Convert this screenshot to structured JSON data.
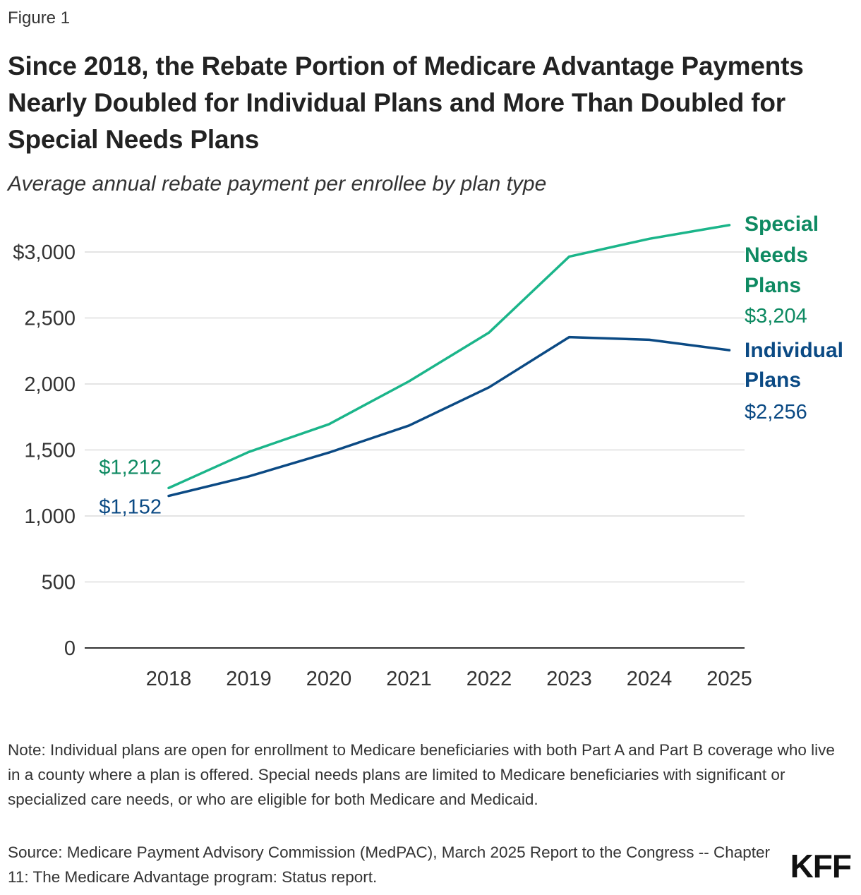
{
  "figure_label": "Figure 1",
  "title": "Since 2018, the Rebate Portion of Medicare Advantage Payments Nearly Doubled for Individual Plans and More Than Doubled for Special Needs Plans",
  "subtitle": "Average annual rebate payment per enrollee by plan type",
  "note": "Note: Individual plans are open for enrollment to Medicare beneficiaries with both Part A and Part B coverage who live in a county where a plan is offered. Special needs plans are limited to Medicare beneficiaries with significant or specialized care needs, or who are eligible for both Medicare and Medicaid.",
  "source": "Source: Medicare Payment Advisory Commission (MedPAC), March 2025 Report to the Congress -- Chapter 11: The Medicare Advantage program: Status report.",
  "logo": "KFF",
  "chart_data": {
    "type": "line",
    "x": [
      "2018",
      "2019",
      "2020",
      "2021",
      "2022",
      "2023",
      "2024",
      "2025"
    ],
    "ylim": [
      0,
      3000
    ],
    "yticks": [
      0,
      500,
      1000,
      1500,
      2000,
      2500,
      3000
    ],
    "ytick_labels": [
      "0",
      "500",
      "1,000",
      "1,500",
      "2,000",
      "2,500",
      "$3,000"
    ],
    "grid": true,
    "series": [
      {
        "name": "Special Needs Plans",
        "label_lines": [
          "Special",
          "Needs",
          "Plans"
        ],
        "color": "#1bb58a",
        "label_color": "#0e8a62",
        "values": [
          1212,
          1485,
          1695,
          2020,
          2390,
          2965,
          3100,
          3204
        ],
        "start_label": "$1,212",
        "end_label": "$3,204"
      },
      {
        "name": "Individual Plans",
        "label_lines": [
          "Individual",
          "Plans"
        ],
        "color": "#0b4a84",
        "label_color": "#0b4a84",
        "values": [
          1152,
          1300,
          1480,
          1685,
          1975,
          2355,
          2335,
          2256
        ],
        "start_label": "$1,152",
        "end_label": "$2,256"
      }
    ]
  }
}
